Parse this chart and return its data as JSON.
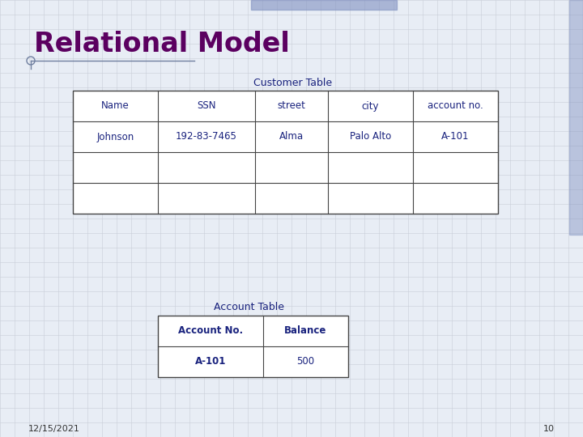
{
  "title": "Relational Model",
  "title_color": "#5B0060",
  "title_fontsize": 24,
  "bg_color": "#E8EDF5",
  "grid_color": "#C8CDD8",
  "customer_table_title": "Customer Table",
  "customer_headers": [
    "Name",
    "SSN",
    "street",
    "city",
    "account no."
  ],
  "customer_row1": [
    "Johnson",
    "192-83-7465",
    "Alma",
    "Palo Alto",
    "A-101"
  ],
  "account_table_title": "Account Table",
  "account_headers": [
    "Account No.",
    "Balance"
  ],
  "account_row1": [
    "A-101",
    "500"
  ],
  "table_text_color": "#1a237e",
  "table_border_color": "#444444",
  "footer_date": "12/15/2021",
  "footer_page": "10",
  "footer_color": "#333333",
  "top_bar_color": "#8090C0",
  "right_bar_color": "#8090C0",
  "underline_color": "#7080A0",
  "circle_color": "#7080A0"
}
